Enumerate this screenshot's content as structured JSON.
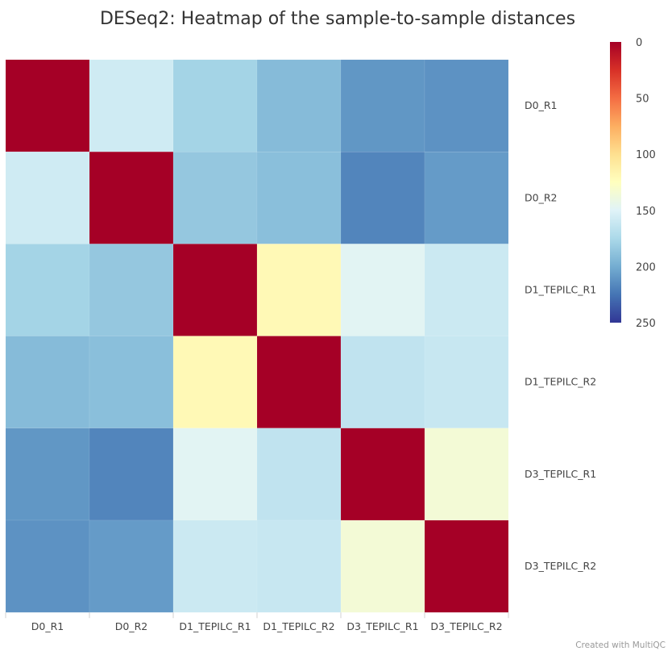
{
  "chart_data": {
    "type": "heatmap",
    "title": "DESeq2: Heatmap of the sample-to-sample distances",
    "samples": [
      "D0_R1",
      "D0_R2",
      "D1_TEPILC_R1",
      "D1_TEPILC_R2",
      "D3_TEPILC_R1",
      "D3_TEPILC_R2"
    ],
    "row_labels": [
      "D0_R1",
      "D0_R2",
      "D1_TEPILC_R1",
      "D1_TEPILC_R2",
      "D3_TEPILC_R1",
      "D3_TEPILC_R2"
    ],
    "col_labels": [
      "D0_R1",
      "D0_R2",
      "D1_TEPILC_R1",
      "D1_TEPILC_R2",
      "D3_TEPILC_R1",
      "D3_TEPILC_R2"
    ],
    "values": [
      [
        0,
        158,
        178,
        192,
        210,
        212
      ],
      [
        158,
        0,
        185,
        190,
        218,
        208
      ],
      [
        178,
        185,
        0,
        120,
        148,
        160
      ],
      [
        192,
        190,
        120,
        0,
        165,
        162
      ],
      [
        210,
        218,
        148,
        165,
        0,
        135
      ],
      [
        212,
        208,
        160,
        162,
        135,
        0
      ]
    ],
    "colorbar": {
      "min": 0,
      "max": 250,
      "ticks": [
        0,
        50,
        100,
        150,
        200,
        250
      ],
      "tick_labels": [
        "0",
        "50",
        "100",
        "150",
        "200",
        "250"
      ],
      "colors": [
        "#a50026",
        "#d73027",
        "#f46d43",
        "#fdae61",
        "#fee090",
        "#ffffbf",
        "#e0f3f8",
        "#abd9e9",
        "#74add1",
        "#4575b4",
        "#313695"
      ]
    },
    "credit": "Created with MultiQC"
  }
}
